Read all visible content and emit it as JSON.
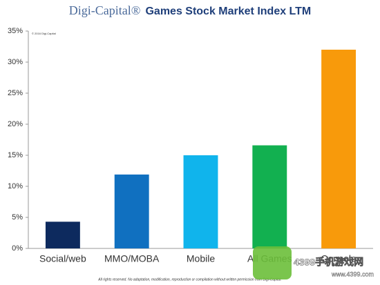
{
  "chart_data": {
    "type": "bar",
    "brand": "Digi-Capital®",
    "title": "Games Stock Market Index LTM",
    "copyright": "© 2016 Digi-Capital",
    "footer": "All rights reserved. No adaptation, modification, reproduction or compilation without written permission from Digi-Capital.",
    "watermark": [
      "4399手机游戏网",
      "www.4399.com"
    ],
    "categories": [
      "Social/web",
      "MMO/MOBA",
      "Mobile",
      "All Games",
      "Console"
    ],
    "values": [
      4.3,
      11.9,
      15,
      16.6,
      32
    ],
    "colors": [
      "#0d2a5e",
      "#1070c0",
      "#10b4ec",
      "#12b050",
      "#f89a0b"
    ],
    "ylim": [
      0,
      35
    ],
    "yticks": [
      {
        "value": 0,
        "label": "0%"
      },
      {
        "value": 5,
        "label": "5%"
      },
      {
        "value": 10,
        "label": "10%"
      },
      {
        "value": 15,
        "label": "15%"
      },
      {
        "value": 20,
        "label": "20%"
      },
      {
        "value": 25,
        "label": "25%"
      },
      {
        "value": 30,
        "label": "30%"
      },
      {
        "value": 35,
        "label": "35%"
      }
    ],
    "grid": false
  }
}
